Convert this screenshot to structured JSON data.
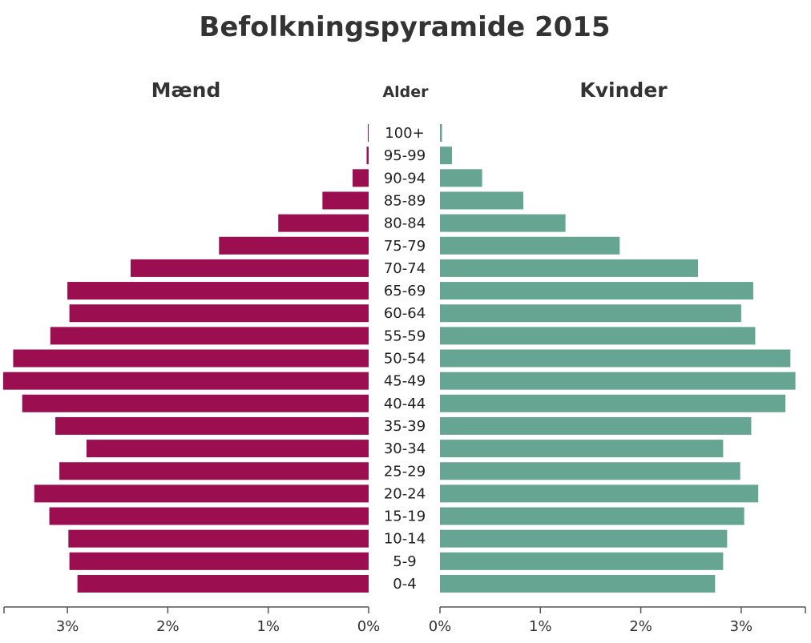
{
  "chart_data": {
    "type": "bar",
    "orientation": "horizontal",
    "title": "Befolkningspyramide 2015",
    "center_label": "Alder",
    "categories": [
      "0-4",
      "5-9",
      "10-14",
      "15-19",
      "20-24",
      "25-29",
      "30-34",
      "35-39",
      "40-44",
      "45-49",
      "50-54",
      "55-59",
      "60-64",
      "65-69",
      "70-74",
      "75-79",
      "80-84",
      "85-89",
      "90-94",
      "95-99",
      "100+"
    ],
    "series": [
      {
        "name": "Mænd",
        "color": "#9b0e50",
        "values": [
          2.9,
          2.98,
          2.99,
          3.18,
          3.33,
          3.08,
          2.81,
          3.12,
          3.45,
          3.64,
          3.54,
          3.17,
          2.98,
          3.0,
          2.37,
          1.49,
          0.9,
          0.46,
          0.16,
          0.02,
          0.005
        ]
      },
      {
        "name": "Kvinder",
        "color": "#66a592",
        "values": [
          2.74,
          2.82,
          2.86,
          3.03,
          3.17,
          2.99,
          2.82,
          3.1,
          3.44,
          3.54,
          3.49,
          3.14,
          3.0,
          3.12,
          2.57,
          1.79,
          1.25,
          0.83,
          0.42,
          0.12,
          0.02
        ]
      }
    ],
    "xlim": [
      0,
      3.65
    ],
    "ticks": [
      "0%",
      "1%",
      "2%",
      "3%"
    ],
    "tick_values": [
      0,
      1,
      2,
      3
    ],
    "grid": false,
    "legend": "none"
  }
}
